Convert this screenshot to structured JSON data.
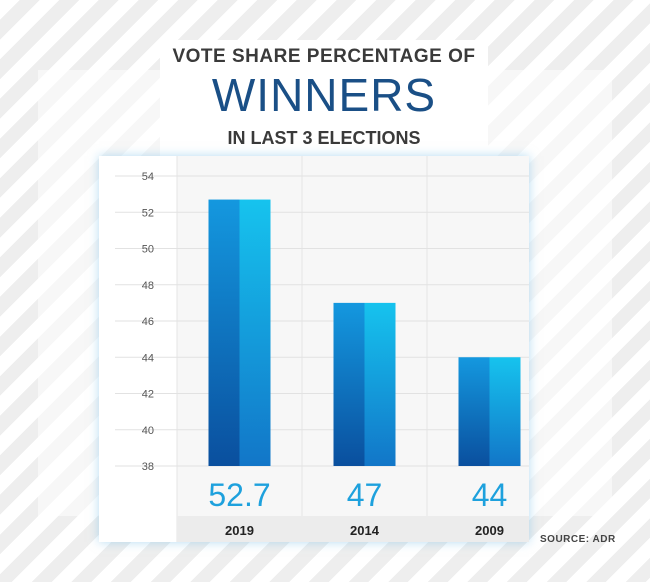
{
  "header": {
    "line1": "VOTE SHARE PERCENTAGE OF",
    "line2": "WINNERS",
    "line3": "IN LAST 3 ELECTIONS"
  },
  "source": "SOURCE: ADR",
  "colors": {
    "bar_dark": "#0a56a8",
    "bar_light": "#17c4ee",
    "value_text": "#1ea1dd",
    "title_blue": "#1a4f86"
  },
  "chart_data": {
    "type": "bar",
    "title": "VOTE SHARE PERCENTAGE OF WINNERS IN LAST 3 ELECTIONS",
    "categories": [
      "2019",
      "2014",
      "2009"
    ],
    "values": [
      52.7,
      47,
      44
    ],
    "value_labels": [
      "52.7",
      "47",
      "44"
    ],
    "ylim": [
      38,
      54
    ],
    "yticks": [
      54,
      52,
      50,
      48,
      46,
      44,
      42,
      40,
      38
    ],
    "xlabel": "",
    "ylabel": "",
    "grid": true
  }
}
